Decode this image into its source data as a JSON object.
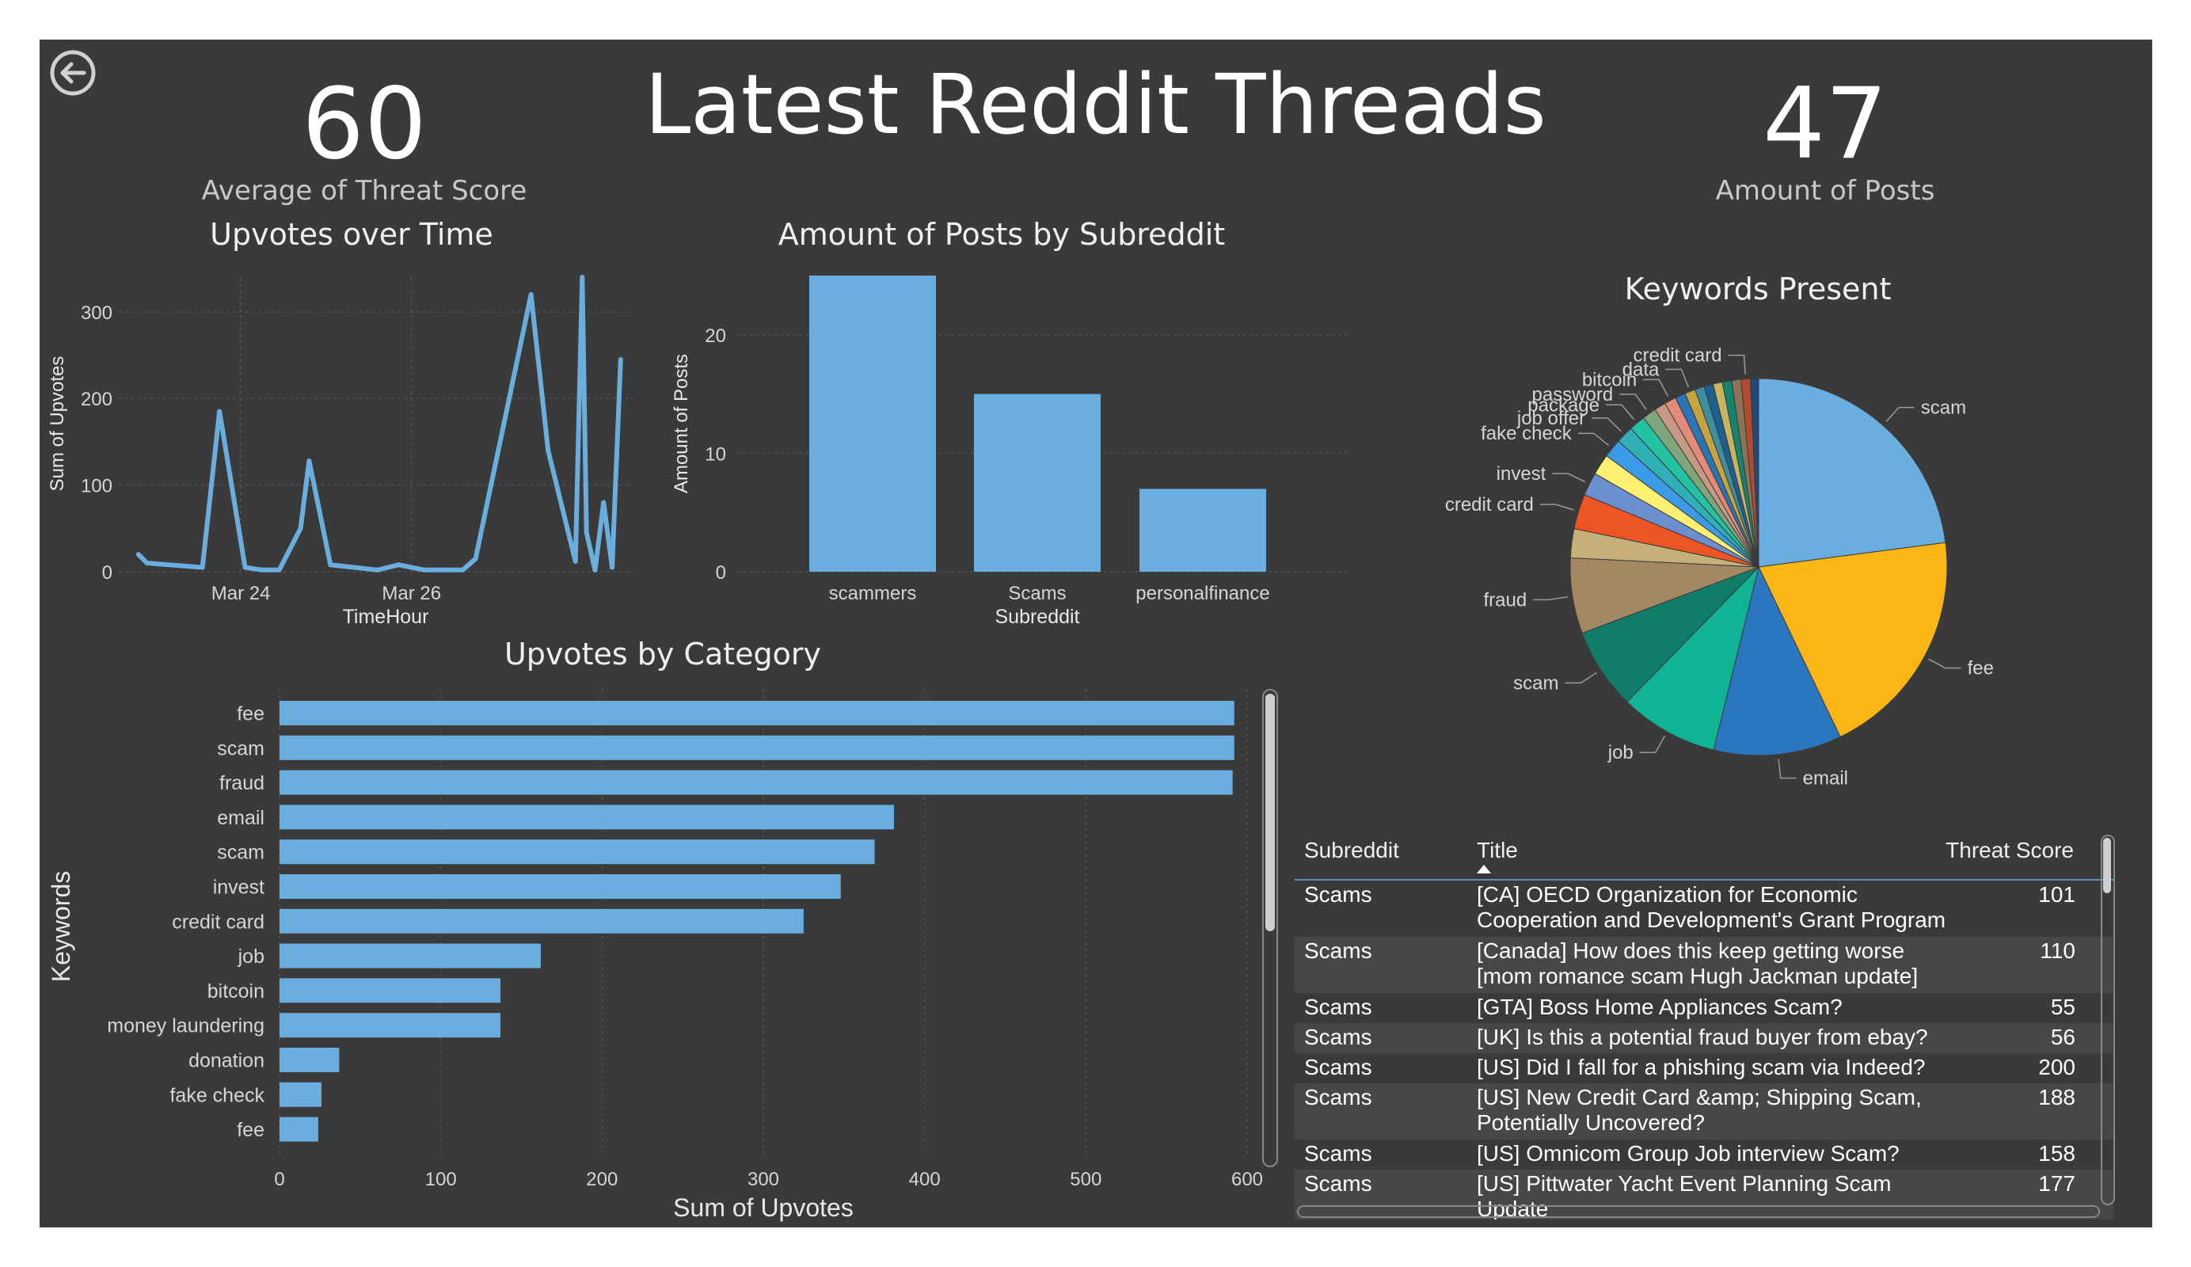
{
  "report": {
    "title": "Latest Reddit Threads"
  },
  "kpis": {
    "left": {
      "value": "60",
      "label": "Average of Threat Score"
    },
    "right": {
      "value": "47",
      "label": "Amount of Posts"
    }
  },
  "visual_titles": {
    "upvotes_time": "Upvotes over Time",
    "posts_subreddit": "Amount of Posts by Subreddit",
    "keywords": "Keywords Present",
    "upvotes_category": "Upvotes by Category"
  },
  "colors": {
    "bar": "#6aaddf",
    "background": "#3a3a3a",
    "gridline": "#555555",
    "axis_text": "#d6d6d6"
  },
  "icons": {
    "back": "back-arrow-icon"
  },
  "chart_data": [
    {
      "id": "upvotes_time",
      "type": "line",
      "title": "Upvotes over Time",
      "xlabel": "TimeHour",
      "ylabel": "Sum of Upvotes",
      "x_ticks": [
        "Mar 24",
        "Mar 26"
      ],
      "x_tick_positions": [
        1.0,
        3.0
      ],
      "x": [
        -0.2,
        -0.1,
        0.55,
        0.75,
        1.05,
        1.25,
        1.45,
        1.7,
        1.8,
        2.05,
        2.6,
        2.85,
        3.15,
        3.6,
        3.75,
        4.4,
        4.6,
        4.92,
        5.0,
        5.05,
        5.15,
        5.25,
        5.35,
        5.45
      ],
      "y": [
        20,
        10,
        5,
        185,
        5,
        2,
        2,
        50,
        128,
        8,
        2,
        8,
        2,
        2,
        15,
        320,
        140,
        12,
        340,
        45,
        2,
        80,
        5,
        245
      ],
      "xlim": [
        -0.43,
        5.6
      ],
      "ylim": [
        0,
        340
      ],
      "y_ticks": [
        0,
        100,
        200,
        300
      ],
      "color": "#6aaddf",
      "grid": true
    },
    {
      "id": "posts_subreddit",
      "type": "bar",
      "title": "Amount of Posts by Subreddit",
      "xlabel": "Subreddit",
      "ylabel": "Amount of Posts",
      "categories": [
        "scammers",
        "Scams",
        "personalfinance"
      ],
      "values": [
        25,
        15,
        7
      ],
      "ylim": [
        0,
        25
      ],
      "y_ticks": [
        0,
        10,
        20
      ],
      "color": "#6aaddf",
      "grid": true
    },
    {
      "id": "keywords",
      "type": "pie",
      "title": "Keywords Present",
      "slices": [
        {
          "label": "scam",
          "value": 23,
          "color": "#6aaddf"
        },
        {
          "label": "fee",
          "value": 20,
          "color": "#fbb514"
        },
        {
          "label": "email",
          "value": 11,
          "color": "#2a77c0"
        },
        {
          "label": "job",
          "value": 8.5,
          "color": "#10b393"
        },
        {
          "label": "scam",
          "value": 7,
          "color": "#0f7d69"
        },
        {
          "label": "fraud",
          "value": 6.5,
          "color": "#a48863"
        },
        {
          "label": "",
          "value": 2.5,
          "color": "#c4b078"
        },
        {
          "label": "credit card",
          "value": 3,
          "color": "#ee5525"
        },
        {
          "label": "invest",
          "value": 2,
          "color": "#6c8fcf"
        },
        {
          "label": "",
          "value": 1.8,
          "color": "#fff071"
        },
        {
          "label": "fake check",
          "value": 1.6,
          "color": "#3b9be8"
        },
        {
          "label": "job offer",
          "value": 1.5,
          "color": "#2fb0b6"
        },
        {
          "label": "package",
          "value": 1.4,
          "color": "#23c2a0"
        },
        {
          "label": "password",
          "value": 1.2,
          "color": "#7fa67a"
        },
        {
          "label": "",
          "value": 1.0,
          "color": "#c79885"
        },
        {
          "label": "bitcoin",
          "value": 1.0,
          "color": "#e48b77"
        },
        {
          "label": "",
          "value": 0.9,
          "color": "#2a75b8"
        },
        {
          "label": "data",
          "value": 0.9,
          "color": "#c8a43e"
        },
        {
          "label": "",
          "value": 0.8,
          "color": "#3c8fa0"
        },
        {
          "label": "",
          "value": 0.8,
          "color": "#1e5f8f"
        },
        {
          "label": "",
          "value": 0.8,
          "color": "#c7b45e"
        },
        {
          "label": "",
          "value": 0.8,
          "color": "#14846f"
        },
        {
          "label": "",
          "value": 0.8,
          "color": "#8a7356"
        },
        {
          "label": "credit card",
          "value": 0.8,
          "color": "#b34b2f"
        },
        {
          "label": "",
          "value": 0.7,
          "color": "#1d4a7a"
        }
      ]
    },
    {
      "id": "upvotes_category",
      "type": "bar",
      "orientation": "horizontal",
      "title": "Upvotes by Category",
      "xlabel": "Sum of Upvotes",
      "ylabel": "Keywords",
      "categories": [
        "fee",
        "scam",
        "fraud",
        "email",
        "scam",
        "invest",
        "credit card",
        "job",
        "bitcoin",
        "money laundering",
        "donation",
        "fake check",
        "fee"
      ],
      "values": [
        592,
        592,
        591,
        381,
        369,
        348,
        325,
        162,
        137,
        137,
        37,
        26,
        24
      ],
      "xlim": [
        0,
        600
      ],
      "x_ticks": [
        0,
        100,
        200,
        300,
        400,
        500,
        600
      ],
      "color": "#6aaddf",
      "grid": true
    }
  ],
  "table": {
    "columns": [
      "Subreddit",
      "Title",
      "Threat Score"
    ],
    "rows": [
      {
        "subreddit": "Scams",
        "title_line1": "[CA] OECD Organization for Economic",
        "title_line2": "Cooperation and Development's Grant Program",
        "score": "101"
      },
      {
        "subreddit": "Scams",
        "title_line1": "[Canada] How does this keep getting worse",
        "title_line2": "[mom romance scam Hugh Jackman update]",
        "score": "110"
      },
      {
        "subreddit": "Scams",
        "title_line1": "[GTA] Boss Home Appliances Scam?",
        "title_line2": "",
        "score": "55"
      },
      {
        "subreddit": "Scams",
        "title_line1": "[UK] Is this a potential fraud buyer from ebay?",
        "title_line2": "",
        "score": "56"
      },
      {
        "subreddit": "Scams",
        "title_line1": "[US] Did I fall for a phishing scam via Indeed?",
        "title_line2": "",
        "score": "200"
      },
      {
        "subreddit": "Scams",
        "title_line1": "[US] New Credit Card &amp; Shipping Scam,",
        "title_line2": "Potentially Uncovered?",
        "score": "188"
      },
      {
        "subreddit": "Scams",
        "title_line1": "[US] Omnicom Group Job interview Scam?",
        "title_line2": "",
        "score": "158"
      },
      {
        "subreddit": "Scams",
        "title_line1": "[US] Pittwater Yacht Event Planning Scam",
        "title_line2": "Update",
        "score": "177"
      }
    ]
  }
}
